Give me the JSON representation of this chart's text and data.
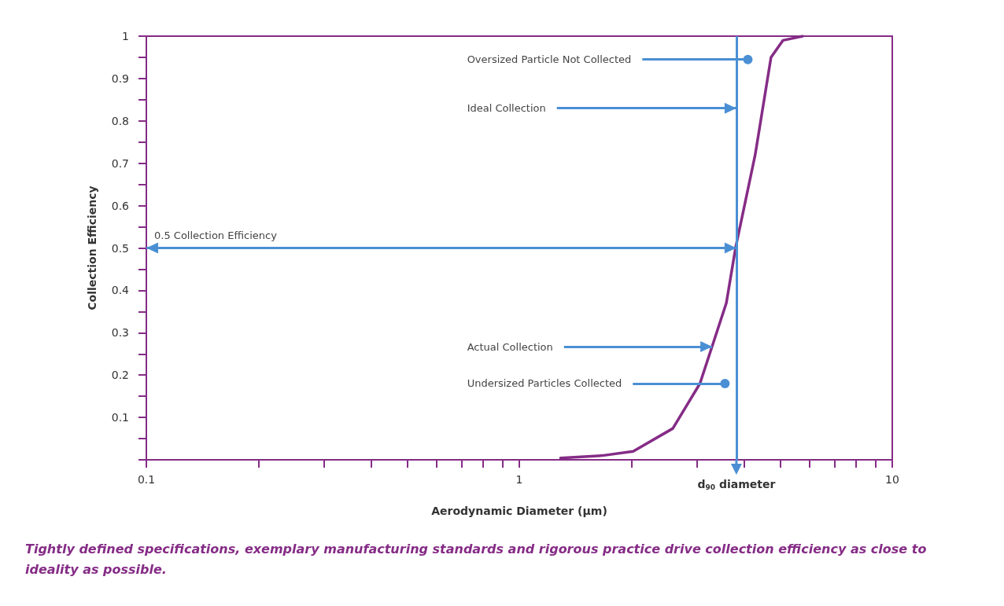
{
  "chart_data": {
    "type": "line",
    "xlabel": "Aerodynamic Diameter (µm)",
    "ylabel": "Collection Efficiency",
    "log": "x",
    "grid": false,
    "marker": "none",
    "line_style": "solid",
    "xlim": [
      0.1,
      10
    ],
    "ylim": [
      0,
      1
    ],
    "xticks": [
      0.1,
      {
        "value": 0.2,
        "label": null
      },
      {
        "value": 0.3,
        "label": null
      },
      {
        "value": 0.4,
        "label": null
      },
      {
        "value": 0.5,
        "label": null
      },
      {
        "value": 0.6,
        "label": null
      },
      {
        "value": 0.7,
        "label": null
      },
      {
        "value": 0.8,
        "label": null
      },
      {
        "value": 0.9,
        "label": null
      },
      1,
      {
        "value": 2,
        "label": null
      },
      {
        "value": 3,
        "label": null
      },
      {
        "value": 4,
        "label": null
      },
      {
        "value": 5,
        "label": null
      },
      {
        "value": 6,
        "label": null
      },
      {
        "value": 7,
        "label": null
      },
      {
        "value": 8,
        "label": null
      },
      {
        "value": 9,
        "label": null
      },
      10
    ],
    "yticks": [
      {
        "value": 0,
        "label": null
      },
      {
        "value": 0.05,
        "label": null
      },
      0.1,
      {
        "value": 0.15,
        "label": null
      },
      0.2,
      {
        "value": 0.25,
        "label": null
      },
      0.3,
      {
        "value": 0.35,
        "label": null
      },
      0.4,
      {
        "value": 0.45,
        "label": null
      },
      0.5,
      {
        "value": 0.55,
        "label": null
      },
      0.6,
      {
        "value": 0.65,
        "label": null
      },
      0.7,
      {
        "value": 0.75,
        "label": null
      },
      0.8,
      {
        "value": 0.85,
        "label": null
      },
      0.9,
      {
        "value": 0.95,
        "label": null
      },
      1
    ],
    "series": [
      {
        "color": "#852c86",
        "x": [
          1.29,
          1.67,
          2.02,
          2.58,
          3.05,
          3.59,
          3.8,
          4.29,
          4.73,
          5.09,
          5.75
        ],
        "values": [
          0.004,
          0.01,
          0.02,
          0.074,
          0.18,
          0.37,
          0.5,
          0.72,
          0.95,
          0.99,
          1
        ]
      }
    ],
    "ref_lines": [
      {
        "axis": "x",
        "value": 3.82,
        "label": "d$_{90}$ diameter",
        "color": "#4a8fd4",
        "line_style": "solid"
      },
      {
        "axis": "y",
        "value": 0.5,
        "label": "0.5 Collection Efficiency",
        "color": "#4a8fd4",
        "line_style": "solid"
      }
    ],
    "annotations": [
      {
        "text": "Oversized Particle Not Collected",
        "x": 4.1,
        "y": 0.945
      },
      {
        "text": "Ideal Collection",
        "x": 3.82,
        "y": 0.83
      },
      {
        "text": "Actual Collection",
        "x": 3.29,
        "y": 0.267
      },
      {
        "text": "Undersized Particles Collected",
        "x": 3.56,
        "y": 0.18
      },
      "Tightly defined specifications, exemplary manufacturing standards and rigorous practice drive collection efficiency as close to ideality as possible."
    ]
  }
}
